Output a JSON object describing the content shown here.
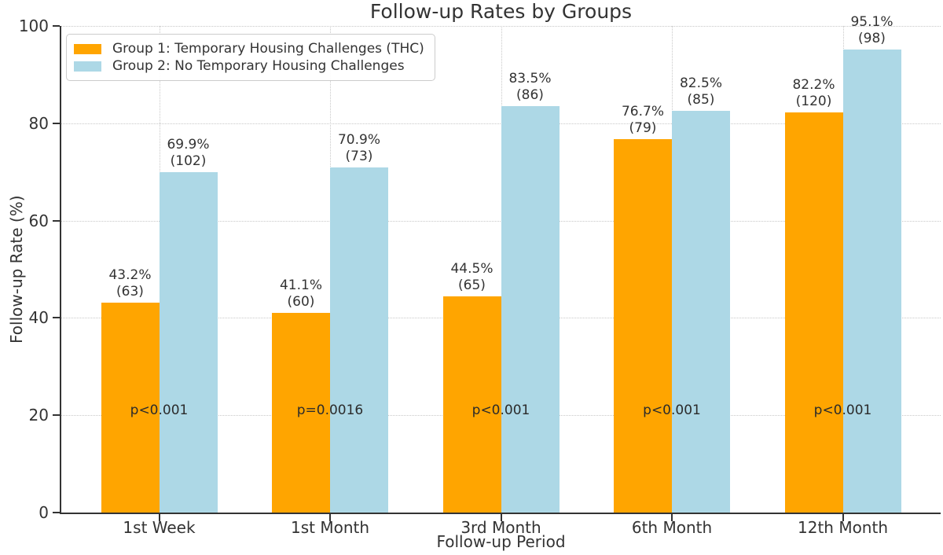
{
  "title": "Follow-up Rates by Groups",
  "y_axis": {
    "label": "Follow-up Rate (%)",
    "ticks": [
      0,
      20,
      40,
      60,
      80,
      100
    ]
  },
  "x_axis": {
    "label": "Follow-up Period"
  },
  "legend": {
    "items": [
      {
        "label": "Group 1: Temporary Housing Challenges (THC)",
        "color": "#FFA500"
      },
      {
        "label": "Group 2: No Temporary Housing Challenges",
        "color": "#ADD8E6"
      }
    ]
  },
  "chart_data": {
    "type": "bar",
    "title": "Follow-up Rates by Groups",
    "xlabel": "Follow-up Period",
    "ylabel": "Follow-up Rate (%)",
    "ylim": [
      0,
      100
    ],
    "grid": true,
    "legend_position": "upper left",
    "categories": [
      "1st Week",
      "1st Month",
      "3rd Month",
      "6th Month",
      "12th Month"
    ],
    "series": [
      {
        "name": "Group 1: Temporary Housing Challenges (THC)",
        "color": "#FFA500",
        "values": [
          43.2,
          41.1,
          44.5,
          76.7,
          82.2
        ],
        "counts": [
          63,
          60,
          65,
          79,
          120
        ]
      },
      {
        "name": "Group 2: No Temporary Housing Challenges",
        "color": "#ADD8E6",
        "values": [
          69.9,
          70.9,
          83.5,
          82.5,
          95.1
        ],
        "counts": [
          102,
          73,
          86,
          85,
          98
        ]
      }
    ],
    "p_values": [
      "p<0.001",
      "p=0.0016",
      "p<0.001",
      "p<0.001",
      "p<0.001"
    ]
  }
}
